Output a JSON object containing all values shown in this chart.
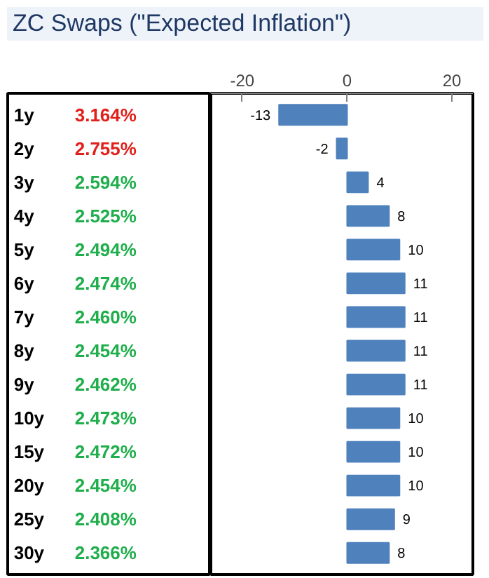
{
  "chart_data": {
    "type": "bar",
    "orientation": "horizontal",
    "title": "ZC Swaps (\"Expected Inflation\")",
    "categories": [
      "1y",
      "2y",
      "3y",
      "4y",
      "5y",
      "6y",
      "7y",
      "8y",
      "9y",
      "10y",
      "15y",
      "20y",
      "25y",
      "30y"
    ],
    "values": [
      -13,
      -2,
      4,
      8,
      10,
      11,
      11,
      11,
      11,
      10,
      10,
      10,
      9,
      8
    ],
    "color": "#4f81bd",
    "data_labels": true,
    "x2lim": [
      -26,
      24
    ],
    "x2ticks": [
      -20,
      0,
      20
    ],
    "grid": false,
    "annotations": [
      "3.164%",
      "2.755%",
      "2.594%",
      "2.525%",
      "2.494%",
      "2.474%",
      "2.460%",
      "2.454%",
      "2.462%",
      "2.473%",
      "2.472%",
      "2.454%",
      "2.408%",
      "2.366%"
    ]
  }
}
